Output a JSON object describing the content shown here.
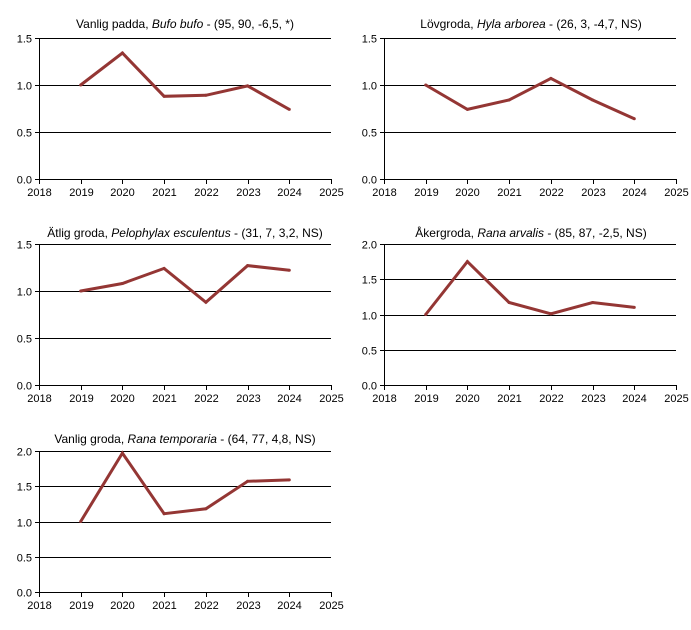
{
  "chart_data": [
    {
      "type": "line",
      "title_common": "Vanlig padda,",
      "title_latin": "Bufo bufo",
      "title_stats": "- (95, 90, -6,5, *)",
      "x_ticks": [
        "2018",
        "2019",
        "2020",
        "2021",
        "2022",
        "2023",
        "2024",
        "2025"
      ],
      "y_ticks": [
        "0.0",
        "0.5",
        "1.0",
        "1.5"
      ],
      "ylim": [
        0,
        1.5
      ],
      "xlim": [
        2018,
        2025
      ],
      "grid": "horizontal",
      "series": [
        {
          "name": "Vanlig padda",
          "color": "#943634",
          "x": [
            2019,
            2020,
            2021,
            2022,
            2023,
            2024
          ],
          "y": [
            1.0,
            1.34,
            0.88,
            0.89,
            0.99,
            0.74
          ]
        }
      ]
    },
    {
      "type": "line",
      "title_common": "Lövgroda,",
      "title_latin": "Hyla arborea",
      "title_stats": "- (26, 3, -4,7, NS)",
      "x_ticks": [
        "2018",
        "2019",
        "2020",
        "2021",
        "2022",
        "2023",
        "2024",
        "2025"
      ],
      "y_ticks": [
        "0.0",
        "0.5",
        "1.0",
        "1.5"
      ],
      "ylim": [
        0,
        1.5
      ],
      "xlim": [
        2018,
        2025
      ],
      "grid": "horizontal",
      "series": [
        {
          "name": "Lövgroda",
          "color": "#943634",
          "x": [
            2019,
            2020,
            2021,
            2022,
            2023,
            2024
          ],
          "y": [
            1.0,
            0.74,
            0.84,
            1.07,
            0.84,
            0.64
          ]
        }
      ]
    },
    {
      "type": "line",
      "title_common": "Ätlig groda,",
      "title_latin": "Pelophylax esculentus",
      "title_stats": "- (31, 7, 3,2, NS)",
      "x_ticks": [
        "2018",
        "2019",
        "2020",
        "2021",
        "2022",
        "2023",
        "2024",
        "2025"
      ],
      "y_ticks": [
        "0.0",
        "0.5",
        "1.0",
        "1.5"
      ],
      "ylim": [
        0,
        1.5
      ],
      "xlim": [
        2018,
        2025
      ],
      "grid": "horizontal",
      "series": [
        {
          "name": "Ätlig groda",
          "color": "#943634",
          "x": [
            2019,
            2020,
            2021,
            2022,
            2023,
            2024
          ],
          "y": [
            1.0,
            1.08,
            1.24,
            0.88,
            1.27,
            1.22
          ]
        }
      ]
    },
    {
      "type": "line",
      "title_common": "Åkergroda,",
      "title_latin": "Rana arvalis",
      "title_stats": "- (85, 87, -2,5, NS)",
      "x_ticks": [
        "2018",
        "2019",
        "2020",
        "2021",
        "2022",
        "2023",
        "2024",
        "2025"
      ],
      "y_ticks": [
        "0.0",
        "0.5",
        "1.0",
        "1.5",
        "2.0"
      ],
      "ylim": [
        0,
        2.0
      ],
      "xlim": [
        2018,
        2025
      ],
      "grid": "horizontal",
      "series": [
        {
          "name": "Åkergroda",
          "color": "#943634",
          "x": [
            2019,
            2020,
            2021,
            2022,
            2023,
            2024
          ],
          "y": [
            1.0,
            1.75,
            1.17,
            1.01,
            1.17,
            1.1
          ]
        }
      ]
    },
    {
      "type": "line",
      "title_common": "Vanlig groda,",
      "title_latin": "Rana temporaria",
      "title_stats": "- (64, 77, 4,8, NS)",
      "x_ticks": [
        "2018",
        "2019",
        "2020",
        "2021",
        "2022",
        "2023",
        "2024",
        "2025"
      ],
      "y_ticks": [
        "0.0",
        "0.5",
        "1.0",
        "1.5",
        "2.0"
      ],
      "ylim": [
        0,
        2.0
      ],
      "xlim": [
        2018,
        2025
      ],
      "grid": "horizontal",
      "series": [
        {
          "name": "Vanlig groda",
          "color": "#943634",
          "x": [
            2019,
            2020,
            2021,
            2022,
            2023,
            2024
          ],
          "y": [
            1.0,
            1.97,
            1.11,
            1.18,
            1.57,
            1.59
          ]
        }
      ]
    }
  ]
}
